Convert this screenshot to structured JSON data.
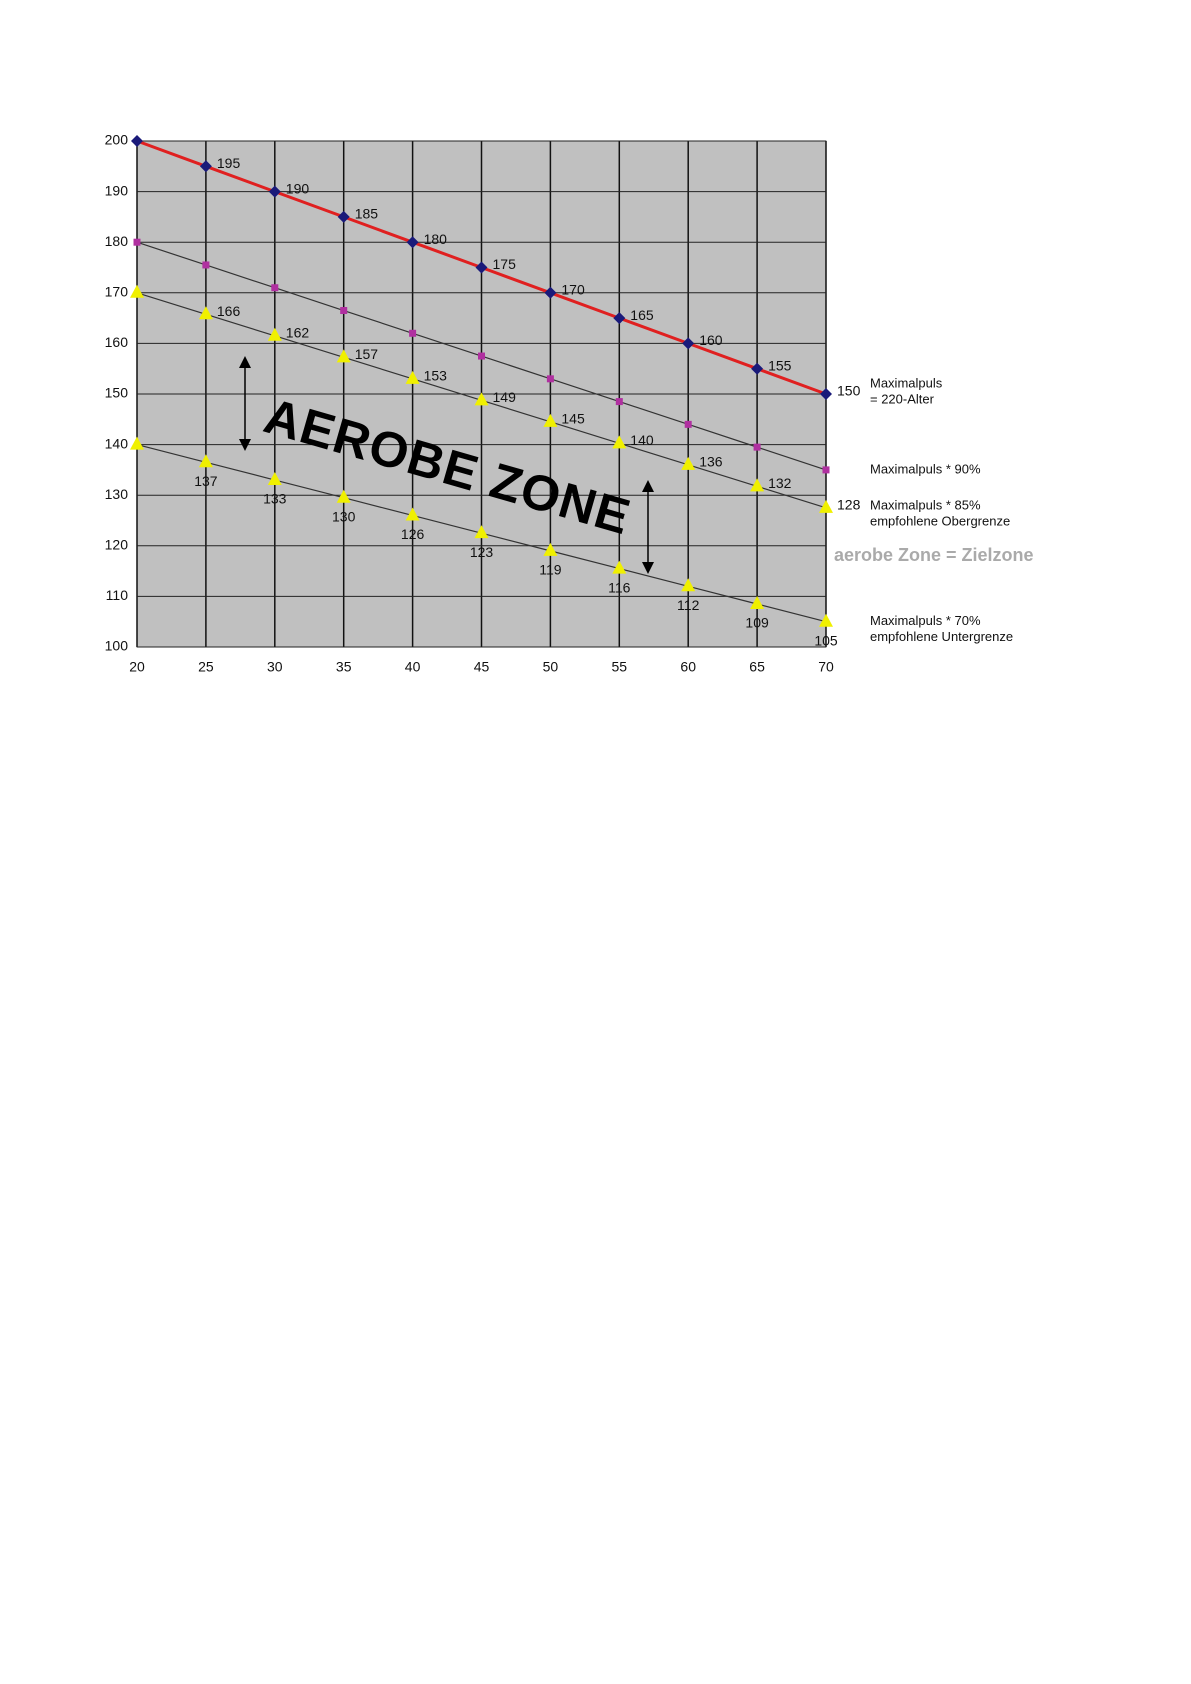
{
  "chart_data": {
    "type": "line",
    "x": [
      20,
      25,
      30,
      35,
      40,
      45,
      50,
      55,
      60,
      65,
      70
    ],
    "series": [
      {
        "name": "Maximalpuls",
        "note": "= 220-Alter",
        "color": "#e02020",
        "marker": "diamond",
        "marker_color": "#1a1a7a",
        "values": [
          200,
          195,
          190,
          185,
          180,
          175,
          170,
          165,
          160,
          155,
          150
        ],
        "value_labels": [
          null,
          "195",
          "190",
          "185",
          "180",
          "175",
          "170",
          "165",
          "160",
          "155",
          "150"
        ]
      },
      {
        "name": "Maximalpuls * 90%",
        "color": "#333333",
        "marker": "square",
        "marker_color": "#b030a0",
        "values": [
          180,
          175.5,
          171,
          166.5,
          162,
          157.5,
          153,
          148.5,
          144,
          139.5,
          135
        ]
      },
      {
        "name": "Maximalpuls * 85%",
        "note": "empfohlene Obergrenze",
        "color": "#333333",
        "marker": "triangle",
        "marker_color": "#f0f000",
        "values": [
          170,
          165.75,
          161.5,
          157.25,
          153,
          148.75,
          144.5,
          140.25,
          136,
          131.75,
          127.5
        ],
        "value_labels": [
          null,
          "166",
          "162",
          "157",
          "153",
          "149",
          "145",
          "140",
          "136",
          "132",
          "128"
        ]
      },
      {
        "name": "Maximalpuls * 70%",
        "note": "empfohlene Untergrenze",
        "color": "#333333",
        "marker": "triangle",
        "marker_color": "#f0f000",
        "values": [
          140,
          136.5,
          133,
          129.5,
          126,
          122.5,
          119,
          115.5,
          112,
          108.5,
          105
        ],
        "value_labels": [
          null,
          "137",
          "133",
          "130",
          "126",
          "123",
          "119",
          "116",
          "112",
          "109",
          "105"
        ]
      }
    ],
    "annotations": [
      "AEROBE ZONE",
      "aerobe Zone = Zielzone"
    ],
    "xlim": [
      20,
      70
    ],
    "xticks": [
      20,
      25,
      30,
      35,
      40,
      45,
      50,
      55,
      60,
      65,
      70
    ],
    "ylim": [
      100,
      200
    ],
    "yticks": [
      100,
      110,
      120,
      130,
      140,
      150,
      160,
      170,
      180,
      190,
      200
    ],
    "grid": true,
    "background": "#c0c0c0"
  }
}
